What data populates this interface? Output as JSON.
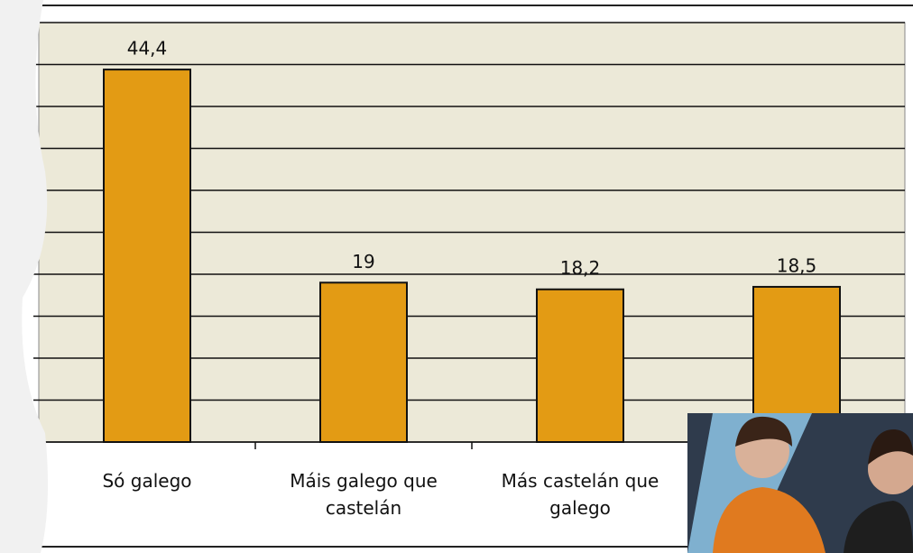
{
  "chart_data": {
    "type": "bar",
    "categories": [
      "Só galego",
      "Máis galego que castelán",
      "Más castelán que galego",
      null
    ],
    "values": [
      44.4,
      19,
      18.2,
      18.5
    ],
    "value_labels": [
      "44,4",
      "19",
      "18,2",
      "18,5"
    ],
    "color": "#e39b14",
    "ylim": [
      0,
      50
    ],
    "yticks": [
      0,
      5,
      10,
      15,
      20,
      25,
      30,
      35,
      40,
      45,
      50
    ],
    "grid": true
  }
}
